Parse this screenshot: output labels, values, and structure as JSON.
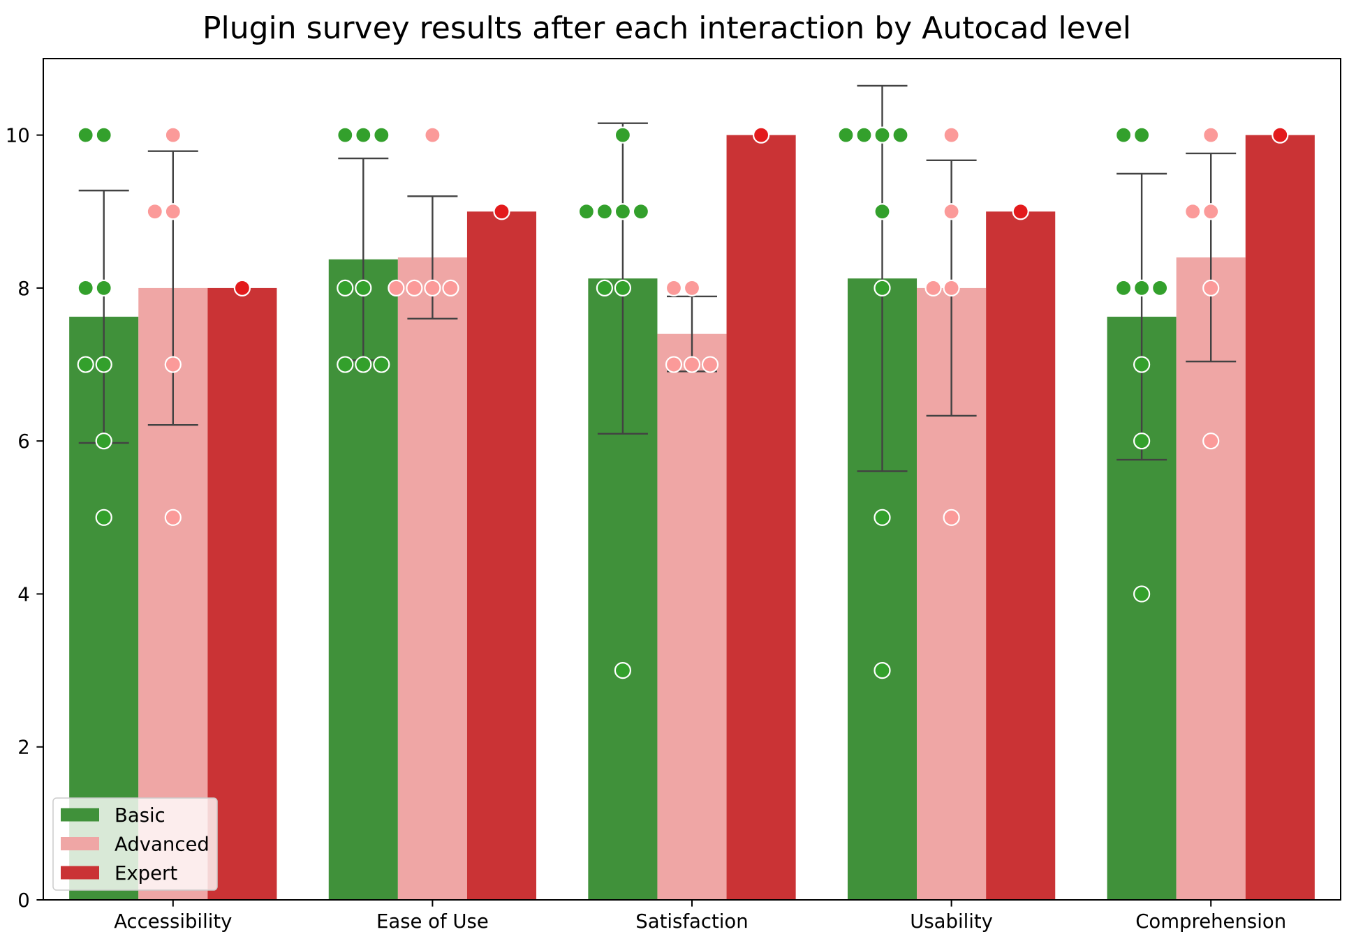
{
  "chart_data": {
    "type": "bar",
    "title": "Plugin survey results after each interaction by Autocad level",
    "categories": [
      "Accessibility",
      "Ease of Use",
      "Satisfaction",
      "Usability",
      "Comprehension"
    ],
    "ylim": [
      0,
      11
    ],
    "yticks": [
      0,
      2,
      4,
      6,
      8,
      10
    ],
    "grid": false,
    "legend_position": "lower left",
    "error_color": "#424242",
    "point_edge_color": "#ffffff",
    "series": [
      {
        "name": "Basic",
        "color": "#40913a",
        "point_color": "#33a02c",
        "values": [
          7.625,
          8.375,
          8.125,
          8.125,
          7.625
        ],
        "error": [
          1.65,
          1.32,
          2.03,
          2.52,
          1.87
        ],
        "points": [
          [
            10,
            10,
            8,
            8,
            7,
            7,
            6,
            5
          ],
          [
            10,
            10,
            10,
            8,
            8,
            7,
            7,
            7
          ],
          [
            10,
            9,
            9,
            9,
            9,
            8,
            8,
            3
          ],
          [
            10,
            10,
            10,
            10,
            9,
            8,
            5,
            3
          ],
          [
            10,
            10,
            8,
            8,
            8,
            7,
            6,
            4
          ]
        ]
      },
      {
        "name": "Advanced",
        "color": "#efa6a5",
        "point_color": "#fb9a99",
        "values": [
          8.0,
          8.4,
          7.4,
          8.0,
          8.4
        ],
        "error": [
          1.79,
          0.8,
          0.49,
          1.67,
          1.36
        ],
        "points": [
          [
            10,
            9,
            9,
            7,
            5
          ],
          [
            10,
            8,
            8,
            8,
            8
          ],
          [
            8,
            8,
            7,
            7,
            7
          ],
          [
            10,
            9,
            8,
            8,
            5
          ],
          [
            10,
            9,
            9,
            8,
            6
          ]
        ]
      },
      {
        "name": "Expert",
        "color": "#ca3335",
        "point_color": "#e31a1c",
        "values": [
          8,
          9,
          10,
          9,
          10
        ],
        "error": [
          null,
          null,
          null,
          null,
          null
        ],
        "points": [
          [
            8
          ],
          [
            9
          ],
          [
            10
          ],
          [
            9
          ],
          [
            10
          ]
        ]
      }
    ]
  }
}
